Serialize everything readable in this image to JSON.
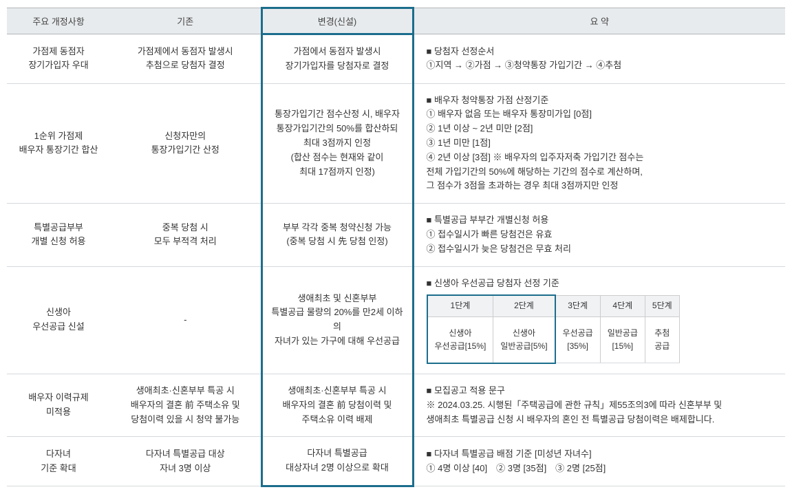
{
  "headers": {
    "col1": "주요 개정사항",
    "col2": "기존",
    "col3": "변경(신설)",
    "col4": "요 약"
  },
  "rows": [
    {
      "title": "가점제 동점자\n장기가입자 우대",
      "old": "가점제에서 동점자 발생시\n추첨으로 당첨자 결정",
      "new": "가점에서 동점자 발생시\n장기가입자를 당첨자로 결정",
      "summary": "■ 당첨자 선정순서\n①지역 → ②가점 → ③청약통장 가입기간 → ④추첨"
    },
    {
      "title": "1순위 가점제\n배우자 통장기간 합산",
      "old": "신청자만의\n통장가입기간 산정",
      "new": "통장가입기간 점수산정 시, 배우자\n통장가입기간의 50%를 합산하되\n최대 3점까지 인정\n(합산 점수는 현재와 같이\n최대 17점까지 인정)",
      "summary": "■ 배우자 청약통장 가점 산정기준\n① 배우자 없음 또는 배우자 통장미가입 [0점]\n② 1년 이상 ~ 2년 미만 [2점]\n③ 1년 미만 [1점]\n④ 2년 이상 [3점] ※ 배우자의 입주자저축 가입기간 점수는\n전체 가입기간의 50%에 해당하는 기간의 점수로 계산하며,\n그 점수가 3점을 초과하는 경우 최대 3점까지만 인정"
    },
    {
      "title": "특별공급부부\n개별 신청 허용",
      "old": "중복 당첨 시\n모두 부적격 처리",
      "new": "부부 각각 중복 청약신청 가능\n(중복 당첨 시 先 당첨 인정)",
      "summary": "■ 특별공급 부부간 개별신청 허용\n① 접수일시가 빠른 당첨건은 유효\n② 접수일시가 늦은 당첨건은 무효 처리"
    },
    {
      "title": "신생아\n우선공급 신설",
      "old": "-",
      "new": "생애최초 및 신혼부부\n특별공급 물량의 20%를 만2세 이하의\n자녀가 있는 가구에 대해 우선공급",
      "summaryLabel": "■ 신생아 우선공급 당첨자 선정 기준",
      "miniTable": {
        "headers": [
          "1단계",
          "2단계",
          "3단계",
          "4단계",
          "5단계"
        ],
        "cells": [
          "신생아\n우선공급[15%]",
          "신생아\n일반공급[5%]",
          "우선공급\n[35%]",
          "일반공급\n[15%]",
          "추첨\n공급"
        ]
      }
    },
    {
      "title": "배우자 이력규제\n미적용",
      "old": "생애최초·신혼부부 특공 시\n배우자의 결혼 前 주택소유 및\n당첨이력 있을 시 청약 불가능",
      "new": "생애최초·신혼부부 특공 시\n배우자의 결혼 前 당첨이력 및\n주택소유 이력 배제",
      "summary": "■ 모집공고 적용 문구\n※ 2024.03.25. 시행된「주택공급에 관한 규칙」제55조의3에 따라 신혼부부 및\n생애최초 특별공급 신청 시 배우자의 혼인 전 특별공급 당첨이력은 배제합니다."
    },
    {
      "title": "다자녀\n기준 확대",
      "old": "다자녀 특별공급 대상\n자녀 3명 이상",
      "new": "다자녀 특별공급\n대상자녀 2명 이상으로 확대",
      "summary": "■ 다자녀 특별공급 배점 기준 [미성년 자녀수]\n① 4명 이상 [40]　② 3명 [35점]　③ 2명 [25점]"
    }
  ],
  "style": {
    "highlightColor": "#1b6d8c",
    "headerBg": "#e8ebed",
    "borderColor": "#d5d9dc",
    "textColor": "#333333"
  }
}
